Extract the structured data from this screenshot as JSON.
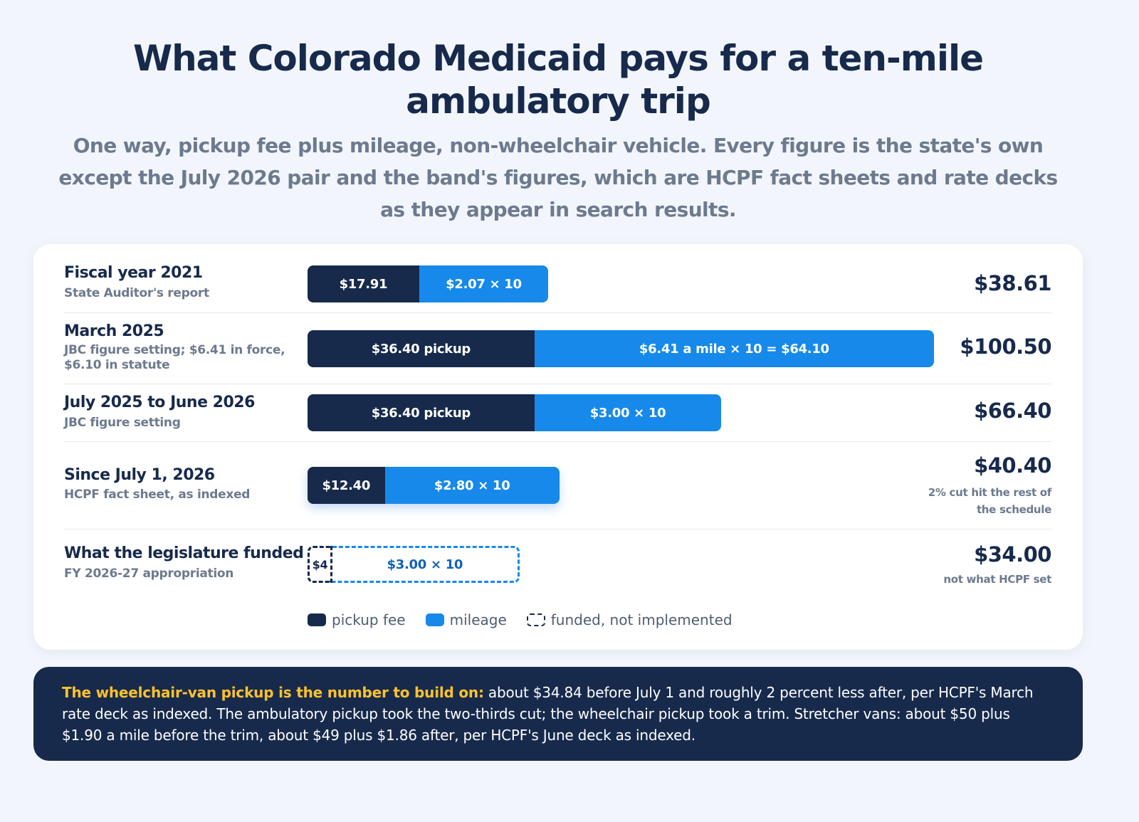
{
  "title": "What Colorado Medicaid pays for a ten-mile ambulatory trip",
  "subtitle": "One way, pickup fee plus mileage, non-wheelchair vehicle. Every figure is the state's own except the July 2026 pair and the band's figures, which are HCPF fact sheets and rate decks as they appear in search results.",
  "chart_data": {
    "type": "bar",
    "stacked": true,
    "orientation": "horizontal",
    "xlim": [
      0,
      100.5
    ],
    "series": [
      {
        "name": "pickup fee",
        "color": "#172a4c"
      },
      {
        "name": "mileage",
        "color": "#1689ea"
      }
    ],
    "rows": [
      {
        "label": "Fiscal year 2021",
        "source": "State Auditor's report",
        "pickup": 17.91,
        "mileage": 20.7,
        "pickup_label": "$17.91",
        "mileage_label": "$2.07 × 10",
        "total": "$38.61",
        "note": ""
      },
      {
        "label": "March 2025",
        "source": "JBC figure setting; $6.41 in force, $6.10 in statute",
        "pickup": 36.4,
        "mileage": 64.1,
        "pickup_label": "$36.40 pickup",
        "mileage_label": "$6.41 a mile × 10 = $64.10",
        "total": "$100.50",
        "note": ""
      },
      {
        "label": "July 2025 to June 2026",
        "source": "JBC figure setting",
        "pickup": 36.4,
        "mileage": 30.0,
        "pickup_label": "$36.40 pickup",
        "mileage_label": "$3.00 × 10",
        "total": "$66.40",
        "note": ""
      },
      {
        "label": "Since July 1, 2026",
        "source": "HCPF fact sheet, as indexed",
        "pickup": 12.4,
        "mileage": 28.0,
        "pickup_label": "$12.40",
        "mileage_label": "$2.80 × 10",
        "total": "$40.40",
        "note": "2% cut hit the rest of the schedule"
      },
      {
        "label": "What the legislature funded",
        "source": "FY 2026-27 appropriation",
        "pickup": 4.0,
        "mileage": 30.0,
        "pickup_label": "$4",
        "mileage_label": "$3.00 × 10",
        "total": "$34.00",
        "note": "not what HCPF set",
        "style": "funded, not implemented"
      }
    ],
    "legend": [
      "pickup fee",
      "mileage",
      "funded, not implemented"
    ]
  },
  "callout": {
    "lead": "The wheelchair-van pickup is the number to build on:",
    "body": " about $34.84 before July 1 and roughly 2 percent less after, per HCPF's March rate deck as indexed. The ambulatory pickup took the two-thirds cut; the wheelchair pickup took a trim. Stretcher vans: about $50 plus $1.90 a mile before the trim, about $49 plus $1.86 after, per HCPF's June deck as indexed."
  }
}
